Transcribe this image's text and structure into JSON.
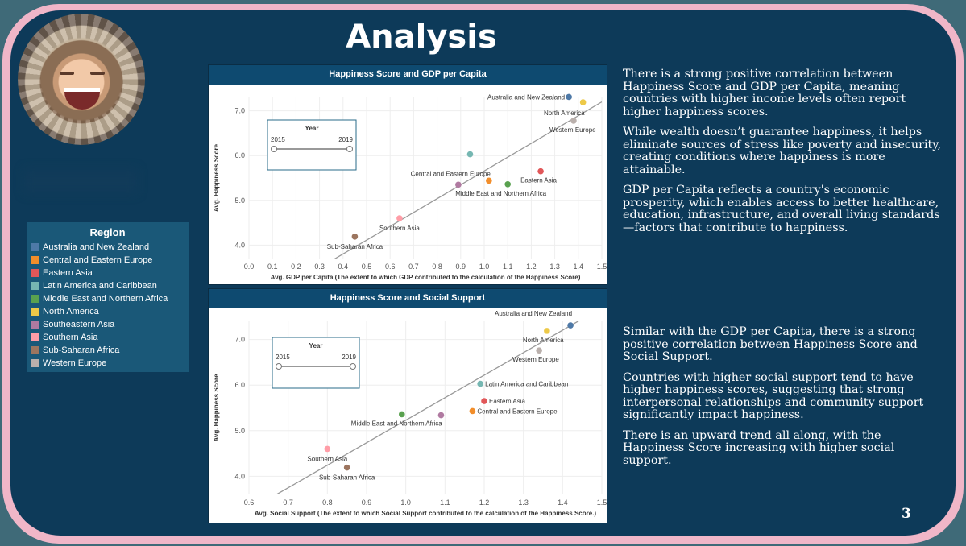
{
  "slide": {
    "title": "Analysis",
    "page_number": "3"
  },
  "legend": {
    "title": "Region",
    "items": [
      {
        "label": "Australia and New Zealand",
        "color": "#4e79a7"
      },
      {
        "label": "Central and Eastern Europe",
        "color": "#f28e2b"
      },
      {
        "label": "Eastern Asia",
        "color": "#e15759"
      },
      {
        "label": "Latin America and Caribbean",
        "color": "#76b7b2"
      },
      {
        "label": "Middle East and Northern Africa",
        "color": "#59a14f"
      },
      {
        "label": "North America",
        "color": "#edc948"
      },
      {
        "label": "Southeastern Asia",
        "color": "#b07aa1"
      },
      {
        "label": "Southern Asia",
        "color": "#ff9da7"
      },
      {
        "label": "Sub-Saharan Africa",
        "color": "#9c755f"
      },
      {
        "label": "Western Europe",
        "color": "#bab0ac"
      }
    ]
  },
  "text": {
    "gdp_paragraphs": [
      "There is a strong positive correlation between Happiness Score and GDP per Capita, meaning countries with higher income levels often report higher happiness scores.",
      "While wealth doesn’t guarantee happiness, it helps eliminate sources of stress like poverty and insecurity, creating conditions where happiness is more attainable.",
      "GDP per Capita reflects a country's economic prosperity, which enables access to better healthcare, education, infrastructure, and overall living standards—factors that contribute to happiness."
    ],
    "social_paragraphs": [
      "Similar with the GDP per Capita, there is a strong positive correlation between Happiness Score and Social Support.",
      "Countries with higher social support tend to have higher happiness scores, suggesting that strong interpersonal relationships and community support significantly impact happiness.",
      "There is an upward trend all along, with the Happiness Score increasing with higher social support."
    ]
  },
  "chart_data": [
    {
      "type": "scatter",
      "title": "Happiness Score and GDP per Capita",
      "xlabel": "Avg. GDP per Capita (The extent to which GDP contributed to the calculation of the Happiness Score)",
      "ylabel": "Avg. Happiness Score",
      "xlim": [
        0.0,
        1.5
      ],
      "ylim": [
        3.7,
        7.3
      ],
      "xticks": [
        "0.0",
        "0.1",
        "0.2",
        "0.3",
        "0.4",
        "0.5",
        "0.6",
        "0.7",
        "0.8",
        "0.9",
        "1.0",
        "1.1",
        "1.2",
        "1.3",
        "1.4",
        "1.5"
      ],
      "yticks": [
        "4.0",
        "5.0",
        "6.0",
        "7.0"
      ],
      "grid": true,
      "trendline": [
        [
          0.27,
          3.4
        ],
        [
          1.5,
          7.2
        ]
      ],
      "filter": {
        "title": "Year",
        "min_label": "2015",
        "max_label": "2019"
      },
      "points": [
        {
          "region": "Australia and New Zealand",
          "x": 1.36,
          "y": 7.31,
          "color": "#4e79a7",
          "label": "Australia and New Zealand",
          "label_anchor": "end",
          "label_dx": -5,
          "label_dy": 3
        },
        {
          "region": "North America",
          "x": 1.42,
          "y": 7.19,
          "color": "#edc948",
          "label": "North America",
          "label_anchor": "end",
          "label_dx": 2,
          "label_dy": 16
        },
        {
          "region": "Western Europe",
          "x": 1.38,
          "y": 6.78,
          "color": "#bab0ac",
          "label": "Western Europe",
          "label_anchor": "start",
          "label_dx": -30,
          "label_dy": 14
        },
        {
          "region": "Latin America and Caribbean",
          "x": 0.94,
          "y": 6.03,
          "color": "#76b7b2",
          "label": "",
          "label_anchor": "start",
          "label_dx": 0,
          "label_dy": 0
        },
        {
          "region": "Central and Eastern Europe",
          "x": 1.02,
          "y": 5.44,
          "color": "#f28e2b",
          "label": "Central and Eastern Europe",
          "label_anchor": "end",
          "label_dx": 2,
          "label_dy": -6
        },
        {
          "region": "Eastern Asia",
          "x": 1.24,
          "y": 5.65,
          "color": "#e15759",
          "label": "Eastern Asia",
          "label_anchor": "start",
          "label_dx": -25,
          "label_dy": 14
        },
        {
          "region": "Middle East and Northern Africa",
          "x": 1.1,
          "y": 5.36,
          "color": "#59a14f",
          "label": "Middle East and Northern Africa",
          "label_anchor": "start",
          "label_dx": -65,
          "label_dy": 14
        },
        {
          "region": "Southeastern Asia",
          "x": 0.89,
          "y": 5.35,
          "color": "#b07aa1",
          "label": "",
          "label_anchor": "start",
          "label_dx": 0,
          "label_dy": 0
        },
        {
          "region": "Southern Asia",
          "x": 0.64,
          "y": 4.6,
          "color": "#ff9da7",
          "label": "Southern Asia",
          "label_anchor": "middle",
          "label_dx": 0,
          "label_dy": 15
        },
        {
          "region": "Sub-Saharan Africa",
          "x": 0.45,
          "y": 4.19,
          "color": "#9c755f",
          "label": "Sub-Saharan Africa",
          "label_anchor": "middle",
          "label_dx": 0,
          "label_dy": 15
        }
      ]
    },
    {
      "type": "scatter",
      "title": "Happiness Score and Social Support",
      "xlabel": "Avg. Social Support (The extent to which Social Support contributed to the calculation of the Happiness Score.)",
      "ylabel": "Avg. Happiness Score",
      "xlim": [
        0.6,
        1.5
      ],
      "ylim": [
        3.6,
        7.4
      ],
      "xticks": [
        "0.6",
        "0.7",
        "0.8",
        "0.9",
        "1.0",
        "1.1",
        "1.2",
        "1.3",
        "1.4",
        "1.5"
      ],
      "yticks": [
        "4.0",
        "5.0",
        "6.0",
        "7.0"
      ],
      "grid": true,
      "trendline": [
        [
          0.65,
          3.5
        ],
        [
          1.5,
          7.7
        ]
      ],
      "filter": {
        "title": "Year",
        "min_label": "2015",
        "max_label": "2019"
      },
      "points": [
        {
          "region": "Australia and New Zealand",
          "x": 1.42,
          "y": 7.31,
          "color": "#4e79a7",
          "label": "Australia and New Zealand",
          "label_anchor": "end",
          "label_dx": 2,
          "label_dy": -12
        },
        {
          "region": "North America",
          "x": 1.36,
          "y": 7.19,
          "color": "#edc948",
          "label": "North America",
          "label_anchor": "start",
          "label_dx": -30,
          "label_dy": 14
        },
        {
          "region": "Western Europe",
          "x": 1.34,
          "y": 6.76,
          "color": "#bab0ac",
          "label": "Western Europe",
          "label_anchor": "start",
          "label_dx": -33,
          "label_dy": 14
        },
        {
          "region": "Latin America and Caribbean",
          "x": 1.19,
          "y": 6.03,
          "color": "#76b7b2",
          "label": "Latin America and Caribbean",
          "label_anchor": "start",
          "label_dx": 6,
          "label_dy": 3
        },
        {
          "region": "Eastern Asia",
          "x": 1.2,
          "y": 5.65,
          "color": "#e15759",
          "label": "Eastern Asia",
          "label_anchor": "start",
          "label_dx": 6,
          "label_dy": 3
        },
        {
          "region": "Central and Eastern Europe",
          "x": 1.17,
          "y": 5.43,
          "color": "#f28e2b",
          "label": "Central and Eastern Europe",
          "label_anchor": "start",
          "label_dx": 6,
          "label_dy": 3
        },
        {
          "region": "Southeastern Asia",
          "x": 1.09,
          "y": 5.34,
          "color": "#b07aa1",
          "label": "",
          "label_anchor": "start",
          "label_dx": 0,
          "label_dy": 0
        },
        {
          "region": "Middle East and Northern Africa",
          "x": 0.99,
          "y": 5.36,
          "color": "#59a14f",
          "label": "Middle East and Northern Africa",
          "label_anchor": "start",
          "label_dx": -63,
          "label_dy": 14
        },
        {
          "region": "Southern Asia",
          "x": 0.8,
          "y": 4.6,
          "color": "#ff9da7",
          "label": "Southern Asia",
          "label_anchor": "middle",
          "label_dx": 0,
          "label_dy": 15
        },
        {
          "region": "Sub-Saharan Africa",
          "x": 0.85,
          "y": 4.19,
          "color": "#9c755f",
          "label": "Sub-Saharan Africa",
          "label_anchor": "middle",
          "label_dx": 0,
          "label_dy": 15
        }
      ]
    }
  ]
}
